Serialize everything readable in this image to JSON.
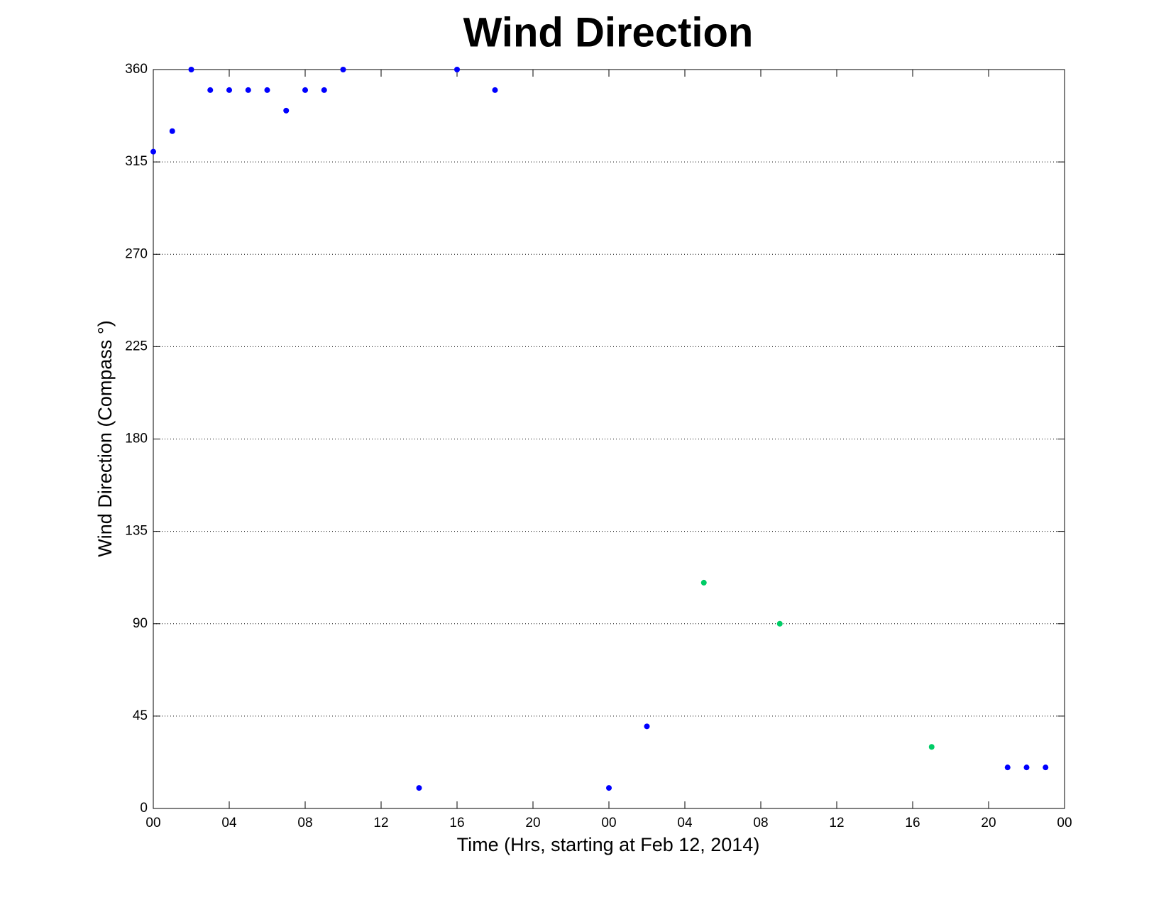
{
  "chart_data": {
    "type": "scatter",
    "title": "Wind Direction",
    "xlabel": "Time (Hrs, starting at Feb 12, 2014)",
    "ylabel": "Wind Direction (Compass °)",
    "xlim": [
      0,
      48
    ],
    "xticks": [
      {
        "value": 0,
        "label": "00"
      },
      {
        "value": 4,
        "label": "04"
      },
      {
        "value": 8,
        "label": "08"
      },
      12,
      16,
      20,
      {
        "value": 24,
        "label": "00"
      },
      {
        "value": 28,
        "label": "04"
      },
      {
        "value": 32,
        "label": "08"
      },
      {
        "value": 36,
        "label": "12"
      },
      {
        "value": 40,
        "label": "16"
      },
      {
        "value": 44,
        "label": "20"
      },
      {
        "value": 48,
        "label": "00"
      }
    ],
    "ylim": [
      0,
      360
    ],
    "yticks": [
      0,
      45,
      90,
      135,
      180,
      225,
      270,
      315,
      360
    ],
    "grid": true,
    "series": [
      {
        "color": "#0000ff",
        "x": [
          0,
          1,
          2,
          3,
          4,
          5,
          6,
          7,
          8,
          9,
          10,
          14,
          16,
          18,
          24,
          26,
          45,
          46,
          47
        ],
        "values": [
          320,
          330,
          360,
          350,
          350,
          350,
          350,
          340,
          350,
          350,
          360,
          10,
          360,
          350,
          10,
          40,
          20,
          20,
          20
        ]
      },
      {
        "color": "#00cc66",
        "x": [
          29,
          33,
          41
        ],
        "values": [
          110,
          90,
          30
        ]
      }
    ]
  }
}
